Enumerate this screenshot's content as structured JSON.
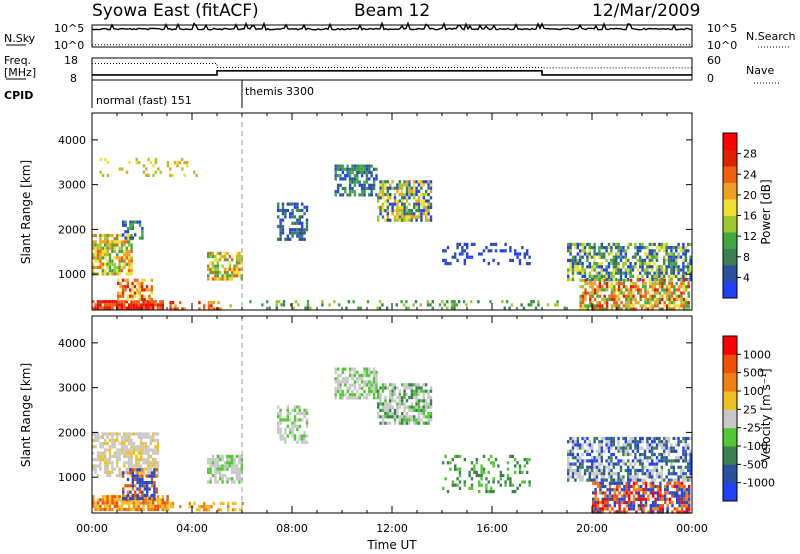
{
  "header": {
    "station": "Syowa East (fitACF)",
    "beam": "Beam 12",
    "date": "12/Mar/2009"
  },
  "chart_data": [
    {
      "type": "line",
      "panel": "N.Sky / N.Search",
      "left_label": "N.Sky",
      "right_label": "N.Search",
      "left_ticks": [
        "10^5",
        "10^0"
      ],
      "right_ticks": [
        "10^5",
        "10^0"
      ],
      "y_scale": "log",
      "series": [
        {
          "name": "N.Sky",
          "style": "solid",
          "level": 0.85
        },
        {
          "name": "N.Search",
          "style": "dotted",
          "level": 0.1
        }
      ]
    },
    {
      "type": "line",
      "panel": "Freq / Nave",
      "left_label_top": "Freq.",
      "left_label_unit": "[MHz]",
      "left_ticks": [
        "18",
        "8"
      ],
      "right_label": "Nave",
      "right_ticks": [
        "60",
        "0"
      ],
      "ylim_freq": [
        8,
        18
      ],
      "ylim_nave": [
        0,
        60
      ],
      "freq_series": [
        {
          "x": 0,
          "y": 10.3
        },
        {
          "x": 5.0,
          "y": 10.3
        },
        {
          "x": 5.0,
          "y": 12.2
        },
        {
          "x": 18.0,
          "y": 12.2
        },
        {
          "x": 18.0,
          "y": 10.3
        },
        {
          "x": 24,
          "y": 10.3
        }
      ],
      "nave_series": [
        {
          "x": 0,
          "y": 45
        },
        {
          "x": 5.0,
          "y": 45
        },
        {
          "x": 5.0,
          "y": 34
        },
        {
          "x": 18.0,
          "y": 34
        },
        {
          "x": 18.0,
          "y": 33
        },
        {
          "x": 24,
          "y": 33
        }
      ]
    },
    {
      "type": "table",
      "panel": "CPID",
      "label": "CPID",
      "entries": [
        {
          "start": 0,
          "end": 6.0,
          "text": "normal (fast) 151"
        },
        {
          "start": 6.0,
          "end": 24,
          "text": "themis 3300"
        }
      ]
    },
    {
      "type": "heatmap",
      "panel": "Power",
      "ylabel": "Slant Range [km]",
      "yticks": [
        1000,
        2000,
        3000,
        4000
      ],
      "ylim": [
        200,
        4600
      ],
      "xlim": [
        0,
        24
      ],
      "colorbar_label": "Power [dB]",
      "colorbar_ticks": [
        "4",
        "8",
        "12",
        "16",
        "20",
        "24",
        "28"
      ],
      "colorbar_colors": [
        "#2040ff",
        "#2c50a0",
        "#3a8050",
        "#40a840",
        "#9cc830",
        "#f0e030",
        "#f0a020",
        "#f06010",
        "#e02000",
        "#ff0000"
      ],
      "echo_regions": [
        {
          "x0": 0.0,
          "x1": 1.6,
          "r0": 1000,
          "r1": 1900,
          "density": 0.75,
          "levels": [
            3,
            4,
            5,
            6,
            7
          ]
        },
        {
          "x0": 0.0,
          "x1": 2.8,
          "r0": 250,
          "r1": 420,
          "density": 0.9,
          "levels": [
            7,
            8,
            9
          ]
        },
        {
          "x0": 1.0,
          "x1": 2.4,
          "r0": 450,
          "r1": 900,
          "density": 0.6,
          "levels": [
            5,
            6,
            7,
            8
          ]
        },
        {
          "x0": 1.2,
          "x1": 2.0,
          "r0": 1800,
          "r1": 2200,
          "density": 0.6,
          "levels": [
            0,
            1,
            2,
            3
          ]
        },
        {
          "x0": 0.3,
          "x1": 4.2,
          "r0": 3200,
          "r1": 3600,
          "density": 0.15,
          "levels": [
            4,
            5,
            6
          ]
        },
        {
          "x0": 4.6,
          "x1": 6.0,
          "r0": 900,
          "r1": 1500,
          "density": 0.7,
          "levels": [
            3,
            4,
            5,
            6,
            7
          ]
        },
        {
          "x0": 3.0,
          "x1": 5.5,
          "r0": 250,
          "r1": 400,
          "density": 0.35,
          "levels": [
            6,
            7,
            8
          ]
        },
        {
          "x0": 7.4,
          "x1": 8.6,
          "r0": 1800,
          "r1": 2600,
          "density": 0.55,
          "levels": [
            0,
            1,
            2
          ]
        },
        {
          "x0": 9.7,
          "x1": 11.4,
          "r0": 2800,
          "r1": 3450,
          "density": 0.7,
          "levels": [
            0,
            1,
            2,
            3
          ]
        },
        {
          "x0": 11.4,
          "x1": 13.6,
          "r0": 2200,
          "r1": 3100,
          "density": 0.7,
          "levels": [
            0,
            1,
            2,
            4,
            5,
            6
          ]
        },
        {
          "x0": 14.0,
          "x1": 17.5,
          "r0": 1200,
          "r1": 1700,
          "density": 0.25,
          "levels": [
            0,
            1
          ]
        },
        {
          "x0": 19.0,
          "x1": 23.9,
          "r0": 900,
          "r1": 1700,
          "density": 0.65,
          "levels": [
            0,
            1,
            2,
            3,
            4,
            5
          ]
        },
        {
          "x0": 19.5,
          "x1": 23.9,
          "r0": 250,
          "r1": 900,
          "density": 0.7,
          "levels": [
            3,
            4,
            5,
            6,
            7,
            8
          ]
        },
        {
          "x0": 6.0,
          "x1": 19.0,
          "r0": 250,
          "r1": 420,
          "density": 0.2,
          "levels": [
            2,
            3,
            4
          ]
        }
      ]
    },
    {
      "type": "heatmap",
      "panel": "Velocity",
      "ylabel": "Slant Range [km]",
      "xlabel": "Time UT",
      "yticks": [
        1000,
        2000,
        3000,
        4000
      ],
      "ylim": [
        200,
        4600
      ],
      "xlim": [
        0,
        24
      ],
      "xticks": [
        "00:00",
        "04:00",
        "08:00",
        "12:00",
        "16:00",
        "20:00",
        "00:00"
      ],
      "colorbar_label": "Velocity [m s⁻¹]",
      "colorbar_ticks": [
        "1000",
        "500",
        "100",
        "25",
        "-25",
        "-100",
        "-500",
        "-1000"
      ],
      "colorbar_colors": [
        "#2040ff",
        "#2c50a0",
        "#3a8050",
        "#50c830",
        "#c8c8c8",
        "#f0c020",
        "#f08010",
        "#f05000",
        "#ff0000"
      ],
      "echo_regions": [
        {
          "x0": 0.0,
          "x1": 2.6,
          "r0": 1000,
          "r1": 2000,
          "density": 0.7,
          "levels": [
            4,
            4,
            4,
            5
          ]
        },
        {
          "x0": 0.0,
          "x1": 3.0,
          "r0": 250,
          "r1": 600,
          "density": 0.8,
          "levels": [
            5,
            6,
            7
          ]
        },
        {
          "x0": 1.2,
          "x1": 2.6,
          "r0": 500,
          "r1": 1200,
          "density": 0.6,
          "levels": [
            0,
            1,
            6,
            7
          ]
        },
        {
          "x0": 4.6,
          "x1": 6.0,
          "r0": 900,
          "r1": 1500,
          "density": 0.7,
          "levels": [
            4,
            4,
            3
          ]
        },
        {
          "x0": 7.4,
          "x1": 8.6,
          "r0": 1800,
          "r1": 2600,
          "density": 0.5,
          "levels": [
            4,
            4,
            3
          ]
        },
        {
          "x0": 9.7,
          "x1": 11.4,
          "r0": 2800,
          "r1": 3450,
          "density": 0.7,
          "levels": [
            4,
            4,
            3
          ]
        },
        {
          "x0": 11.4,
          "x1": 13.6,
          "r0": 2200,
          "r1": 3100,
          "density": 0.7,
          "levels": [
            4,
            4,
            3,
            2
          ]
        },
        {
          "x0": 14.0,
          "x1": 17.5,
          "r0": 700,
          "r1": 1500,
          "density": 0.25,
          "levels": [
            2,
            3
          ]
        },
        {
          "x0": 19.0,
          "x1": 23.9,
          "r0": 900,
          "r1": 1900,
          "density": 0.65,
          "levels": [
            0,
            1,
            2,
            4,
            4
          ]
        },
        {
          "x0": 20.0,
          "x1": 23.9,
          "r0": 250,
          "r1": 900,
          "density": 0.7,
          "levels": [
            0,
            1,
            6,
            7,
            8
          ]
        },
        {
          "x0": 3.0,
          "x1": 6.0,
          "r0": 250,
          "r1": 450,
          "density": 0.35,
          "levels": [
            5,
            6
          ]
        }
      ]
    }
  ]
}
